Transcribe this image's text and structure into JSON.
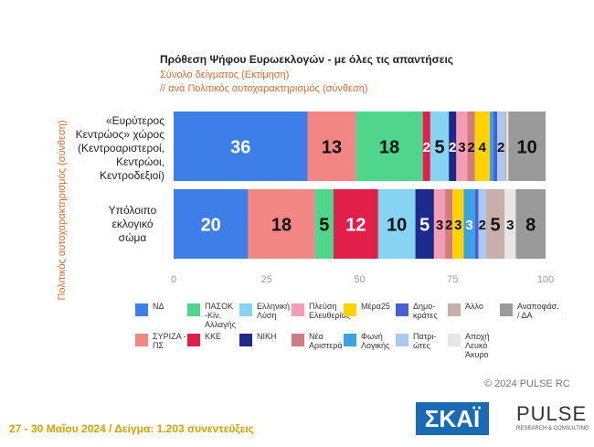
{
  "chart_data": {
    "type": "stacked-barh",
    "title": "Πρόθεση Ψήφου Ευρωεκλογών - με όλες τις απαντήσεις",
    "subtitle": "Σύνολο δείγματος (Εκτίμηση)",
    "subtitle2": "// ανά Πολιτικός αυτοχαρακτηρισμός (σύνθεση)",
    "ylabel": "Πολιτικός αυτοχαρακτηρισμός (σύνθεση)",
    "categories": [
      "«Ευρύτερος Κεντρώος» χώρος (Κεντροαριστεροί, Κεντρώοι, Κεντροδεξιοί)",
      "Υπόλοιπο εκλογικό σώμα"
    ],
    "xlim": [
      0,
      100
    ],
    "xticks": [
      0,
      25,
      50,
      75,
      100
    ],
    "grid": false,
    "series": [
      {
        "name": "ΝΔ",
        "color": "#3d7ee8",
        "values": [
          36,
          20
        ]
      },
      {
        "name": "ΣΥΡΙΖΑ - ΠΣ",
        "color": "#f28682",
        "values": [
          13,
          18
        ]
      },
      {
        "name": "ΠΑΣΟΚ -Κίν. Αλλαγής",
        "color": "#4fd68c",
        "values": [
          18,
          5
        ]
      },
      {
        "name": "ΚΚΕ",
        "color": "#e0204a",
        "values": [
          2,
          12
        ]
      },
      {
        "name": "Ελληνική Λύση",
        "color": "#86d3f2",
        "values": [
          5,
          10
        ]
      },
      {
        "name": "ΝΙΚΗ",
        "color": "#1c2a8c",
        "values": [
          2,
          5
        ]
      },
      {
        "name": "Πλεύση Ελευθερίας",
        "color": "#f59db2",
        "values": [
          3,
          3
        ]
      },
      {
        "name": "Νέα Αριστερά",
        "color": "#d27c82",
        "values": [
          2,
          2
        ]
      },
      {
        "name": "Μέρα25",
        "color": "#ffd200",
        "values": [
          4,
          3
        ]
      },
      {
        "name": "Φωνή Λογικής",
        "color": "#3aa2e2",
        "values": [
          1,
          3
        ]
      },
      {
        "name": "Δημο-κράτες",
        "color": "#4a5ed8",
        "values": [
          1,
          1
        ]
      },
      {
        "name": "Πατρι-ώτες",
        "color": "#a9c9f2",
        "values": [
          2,
          2
        ]
      },
      {
        "name": "Άλλο",
        "color": "#c9afa9",
        "values": [
          0.5,
          5
        ]
      },
      {
        "name": "Αποχή Λευκό Άκυρο",
        "color": "#e6e6e6",
        "values": [
          0.5,
          3
        ]
      },
      {
        "name": "Αναποφάσ. / ΔΑ",
        "color": "#9a9a9a",
        "values": [
          10,
          8
        ]
      }
    ],
    "watermark": "PULSE",
    "copyright": "© 2024 PULSE RC",
    "footer": "27 - 30 Μαΐου 2024 / Δείγμα: 1.203 συνεντεύξεις",
    "logo1": "ΣΚΑΪ",
    "logo2": "PULSE",
    "logo2_sub": "RESEARCH & CONSULTING"
  }
}
